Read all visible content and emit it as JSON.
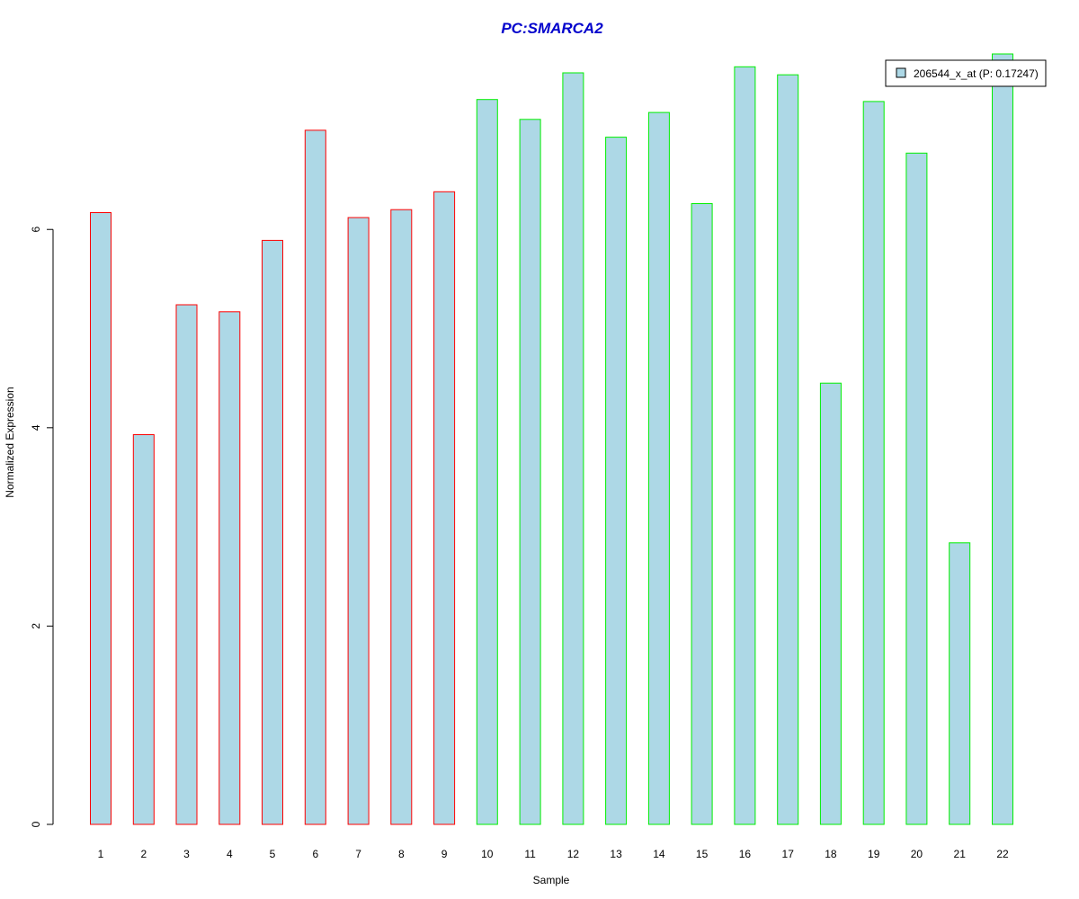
{
  "chart_data": {
    "type": "bar",
    "title": "PC:SMARCA2",
    "xlabel": "Sample",
    "ylabel": "Normalized Expression",
    "categories": [
      "1",
      "2",
      "3",
      "4",
      "5",
      "6",
      "7",
      "8",
      "9",
      "10",
      "11",
      "12",
      "13",
      "14",
      "15",
      "16",
      "17",
      "18",
      "19",
      "20",
      "21",
      "22"
    ],
    "values": [
      6.17,
      3.93,
      5.24,
      5.17,
      5.89,
      7.0,
      6.12,
      6.2,
      6.38,
      7.31,
      7.11,
      7.58,
      6.93,
      7.18,
      6.26,
      7.64,
      7.56,
      4.45,
      7.29,
      6.77,
      2.84,
      7.77
    ],
    "group_colors": [
      "#ff0000",
      "#ff0000",
      "#ff0000",
      "#ff0000",
      "#ff0000",
      "#ff0000",
      "#ff0000",
      "#ff0000",
      "#ff0000",
      "#00ee00",
      "#00ee00",
      "#00ee00",
      "#00ee00",
      "#00ee00",
      "#00ee00",
      "#00ee00",
      "#00ee00",
      "#00ee00",
      "#00ee00",
      "#00ee00",
      "#00ee00",
      "#00ee00"
    ],
    "bar_fill": "#add8e6",
    "title_color": "#0000cc",
    "ylim": [
      0,
      7.77
    ],
    "yticks": [
      0,
      2,
      4,
      6
    ],
    "grid": false,
    "legend": {
      "position": "top-right",
      "entries": [
        {
          "label": "206544_x_at (P: 0.17247)",
          "color": "#add8e6"
        }
      ]
    }
  }
}
